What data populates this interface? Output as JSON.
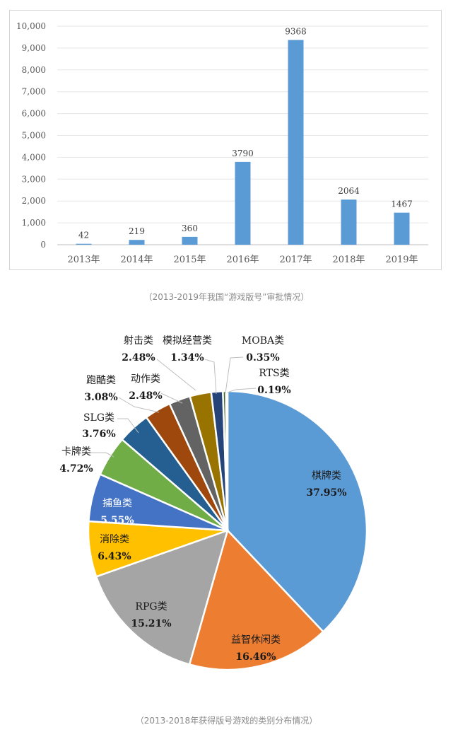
{
  "bar_caption": "（2013-2019年我国“游戏版号”审批情况）",
  "pie_caption": "（2013-2018年获得版号游戏的类别分布情况）",
  "chart_data": [
    {
      "type": "bar",
      "title": "",
      "xlabel": "",
      "ylabel": "",
      "categories": [
        "2013年",
        "2014年",
        "2015年",
        "2016年",
        "2017年",
        "2018年",
        "2019年"
      ],
      "values": [
        42,
        219,
        360,
        3790,
        9368,
        2064,
        1467
      ],
      "data_labels": [
        "42",
        "219",
        "360",
        "3790",
        "9368",
        "2064",
        "1467"
      ],
      "ylim": [
        0,
        10000
      ],
      "yticks": [
        0,
        1000,
        2000,
        3000,
        4000,
        5000,
        6000,
        7000,
        8000,
        9000,
        10000
      ],
      "ytick_labels": [
        "0",
        "1,000",
        "2,000",
        "3,000",
        "4,000",
        "5,000",
        "6,000",
        "7,000",
        "8,000",
        "9,000",
        "10,000"
      ],
      "grid": true,
      "bar_color": "#5b9bd5"
    },
    {
      "type": "pie",
      "title": "",
      "slices": [
        {
          "name": "棋牌类",
          "value": 37.95,
          "label": "37.95%",
          "color": "#5b9bd5"
        },
        {
          "name": "益智休闲类",
          "value": 16.46,
          "label": "16.46%",
          "color": "#ed7d31"
        },
        {
          "name": "RPG类",
          "value": 15.21,
          "label": "15.21%",
          "color": "#a5a5a5"
        },
        {
          "name": "消除类",
          "value": 6.43,
          "label": "6.43%",
          "color": "#ffc000"
        },
        {
          "name": "捕鱼类",
          "value": 5.55,
          "label": "5.55%",
          "color": "#4472c4"
        },
        {
          "name": "卡牌类",
          "value": 4.72,
          "label": "4.72%",
          "color": "#70ad47"
        },
        {
          "name": "SLG类",
          "value": 3.76,
          "label": "3.76%",
          "color": "#255e91"
        },
        {
          "name": "跑酷类",
          "value": 3.08,
          "label": "3.08%",
          "color": "#9e480e"
        },
        {
          "name": "动作类",
          "value": 2.48,
          "label": "2.48%",
          "color": "#636363"
        },
        {
          "name": "射击类",
          "value": 2.48,
          "label": "2.48%",
          "color": "#997300"
        },
        {
          "name": "模拟经营类",
          "value": 1.34,
          "label": "1.34%",
          "color": "#264478"
        },
        {
          "name": "MOBA类",
          "value": 0.35,
          "label": "0.35%",
          "color": "#43682b"
        },
        {
          "name": "RTS类",
          "value": 0.19,
          "label": "0.19%",
          "color": "#698ed0"
        }
      ]
    }
  ]
}
